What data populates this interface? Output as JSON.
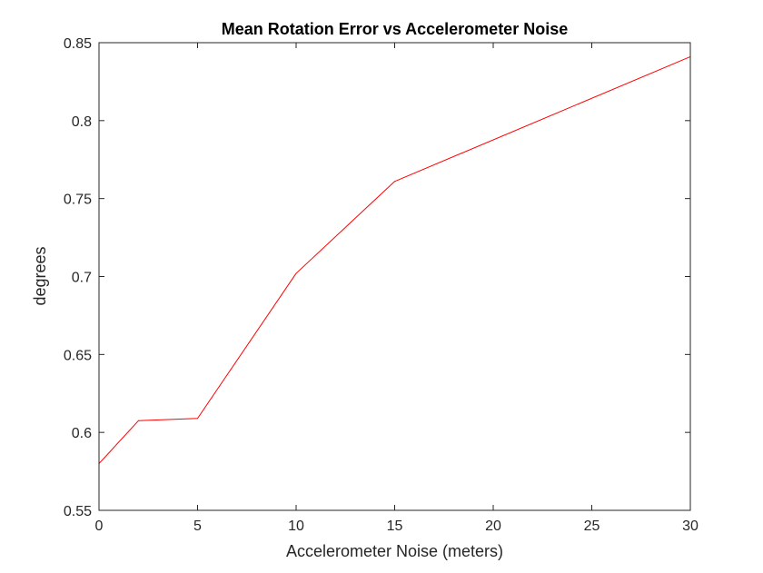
{
  "chart_data": {
    "type": "line",
    "title": "Mean Rotation Error vs Accelerometer Noise",
    "xlabel": "Accelerometer Noise (meters)",
    "ylabel": "degrees",
    "xlim": [
      0,
      30
    ],
    "ylim": [
      0.55,
      0.85
    ],
    "xticks": [
      0,
      5,
      10,
      15,
      20,
      25,
      30
    ],
    "xtick_labels": [
      "0",
      "5",
      "10",
      "15",
      "20",
      "25",
      "30"
    ],
    "yticks": [
      0.55,
      0.6,
      0.65,
      0.7,
      0.75,
      0.8,
      0.85
    ],
    "ytick_labels": [
      "0.55",
      "0.6",
      "0.65",
      "0.7",
      "0.75",
      "0.8",
      "0.85"
    ],
    "grid": false,
    "series": [
      {
        "color": "#ff0000",
        "x": [
          0,
          2,
          5,
          10,
          15,
          30
        ],
        "y": [
          0.58,
          0.6075,
          0.609,
          0.702,
          0.761,
          0.841
        ]
      }
    ]
  }
}
